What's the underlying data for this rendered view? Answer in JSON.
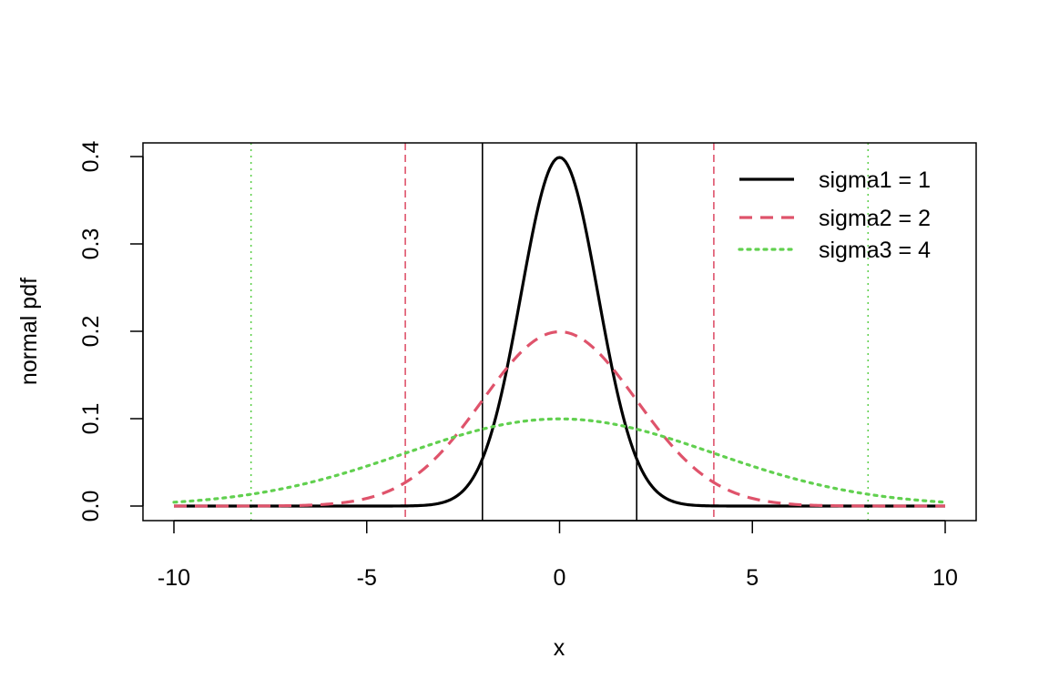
{
  "chart_data": {
    "type": "line",
    "title": "",
    "xlabel": "x",
    "ylabel": "normal pdf",
    "xlim": [
      -10,
      10
    ],
    "ylim": [
      0,
      0.4
    ],
    "x_ticks": [
      -10,
      -5,
      0,
      5,
      10
    ],
    "y_ticks": [
      0.0,
      0.1,
      0.2,
      0.3,
      0.4
    ],
    "x_tick_labels": [
      "-10",
      "-5",
      "0",
      "5",
      "10"
    ],
    "y_tick_labels": [
      "0.0",
      "0.1",
      "0.2",
      "0.3",
      "0.4"
    ],
    "grid": false,
    "legend_position": "top-right",
    "x": [
      -10,
      -9,
      -8,
      -7,
      -6,
      -5,
      -4,
      -3.5,
      -3,
      -2.5,
      -2,
      -1.5,
      -1,
      -0.5,
      0,
      0.5,
      1,
      1.5,
      2,
      2.5,
      3,
      3.5,
      4,
      5,
      6,
      7,
      8,
      9,
      10
    ],
    "series": [
      {
        "name": "sigma1 = 1",
        "color": "#000000",
        "style": "solid",
        "values": [
          0,
          0,
          0,
          0,
          0,
          1.5e-06,
          0.0001,
          0.0009,
          0.0044,
          0.0175,
          0.054,
          0.1295,
          0.242,
          0.3521,
          0.3989,
          0.3521,
          0.242,
          0.1295,
          0.054,
          0.0175,
          0.0044,
          0.0009,
          0.0001,
          1.5e-06,
          0,
          0,
          0,
          0,
          0
        ]
      },
      {
        "name": "sigma2 = 2",
        "color": "#DF536B",
        "style": "dashed",
        "values": [
          7e-07,
          8e-06,
          0.0001,
          0.0004,
          0.0022,
          0.0088,
          0.027,
          0.0431,
          0.0648,
          0.0913,
          0.121,
          0.1506,
          0.176,
          0.1933,
          0.1995,
          0.1933,
          0.176,
          0.1506,
          0.121,
          0.0913,
          0.0648,
          0.0431,
          0.027,
          0.0088,
          0.0022,
          0.0004,
          0.0001,
          8e-06,
          7e-07
        ]
      },
      {
        "name": "sigma3 = 4",
        "color": "#61D04F",
        "style": "dotted",
        "values": [
          0.0044,
          0.008,
          0.0135,
          0.0216,
          0.0324,
          0.0457,
          0.0605,
          0.0682,
          0.0753,
          0.0821,
          0.088,
          0.093,
          0.0967,
          0.0989,
          0.0997,
          0.0989,
          0.0967,
          0.093,
          0.088,
          0.0821,
          0.0753,
          0.0682,
          0.0605,
          0.0457,
          0.0324,
          0.0216,
          0.0135,
          0.008,
          0.0044
        ]
      }
    ],
    "vertical_lines": [
      {
        "x": -2,
        "color": "#000000",
        "style": "solid"
      },
      {
        "x": 2,
        "color": "#000000",
        "style": "solid"
      },
      {
        "x": -4,
        "color": "#DF536B",
        "style": "dashed"
      },
      {
        "x": 4,
        "color": "#DF536B",
        "style": "dashed"
      },
      {
        "x": -8,
        "color": "#61D04F",
        "style": "dotted"
      },
      {
        "x": 8,
        "color": "#61D04F",
        "style": "dotted"
      }
    ]
  }
}
